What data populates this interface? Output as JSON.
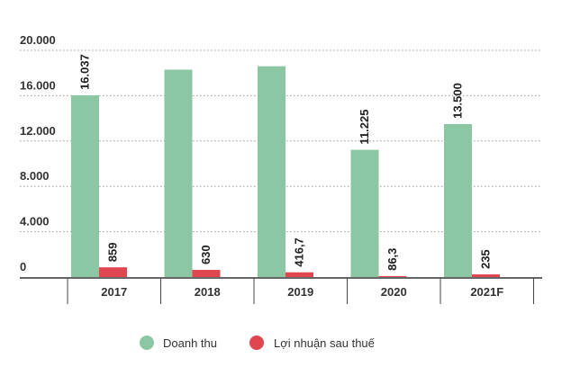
{
  "chart_data": {
    "type": "bar",
    "categories": [
      "2017",
      "2018",
      "2019",
      "2020",
      "2021F"
    ],
    "series": [
      {
        "name": "Doanh thu",
        "color": "#8cc7a3",
        "values": [
          16037,
          18300,
          18600,
          11225,
          13500
        ],
        "labels": [
          "16.037",
          "",
          "",
          "11.225",
          "13.500"
        ]
      },
      {
        "name": "Lợi nhuận sau thuế",
        "color": "#e0464f",
        "values": [
          859,
          630,
          416.7,
          86.3,
          235
        ],
        "labels": [
          "859",
          "630",
          "416,7",
          "86,3",
          "235"
        ]
      }
    ],
    "yticks": [
      {
        "value": 0,
        "label": "0"
      },
      {
        "value": 4000,
        "label": "4.000"
      },
      {
        "value": 8000,
        "label": "8.000"
      },
      {
        "value": 12000,
        "label": "12.000"
      },
      {
        "value": 16000,
        "label": "16.000"
      },
      {
        "value": 20000,
        "label": "20.000"
      }
    ],
    "ylim": [
      0,
      20000
    ],
    "grid": true,
    "legend_position": "bottom-center"
  }
}
